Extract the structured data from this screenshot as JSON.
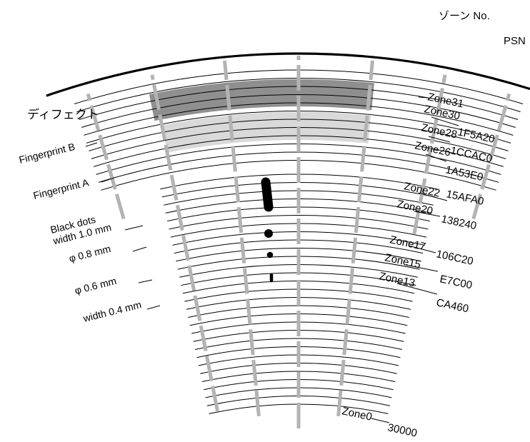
{
  "header": {
    "zone_no_label": "ゾーン No.",
    "psn_label": "PSN"
  },
  "defect_title": "ディフェクト",
  "defects": [
    {
      "label": "Fingerprint B"
    },
    {
      "label": "Fingerprint A"
    },
    {
      "label": "Black dots\nwidth 1.0 mm"
    },
    {
      "label": "φ 0.8 mm"
    },
    {
      "label": "φ 0.6 mm"
    },
    {
      "label": "width 0.4 mm"
    }
  ],
  "zones": [
    {
      "zone": "Zone31",
      "psn": ""
    },
    {
      "zone": "Zone30",
      "psn": "1F5A20"
    },
    {
      "zone": "Zone28",
      "psn": "1CCAC0"
    },
    {
      "zone": "Zone26",
      "psn": "1A53E0"
    },
    {
      "zone": "Zone22",
      "psn": "15AFA0"
    },
    {
      "zone": "Zone20",
      "psn": "138240"
    },
    {
      "zone": "Zone17",
      "psn": "106C20"
    },
    {
      "zone": "Zone15",
      "psn": "E7C00"
    },
    {
      "zone": "Zone13",
      "psn": "CA460"
    },
    {
      "zone": "Zone0",
      "psn": "30000"
    }
  ],
  "colors": {
    "fingerprint_b": "#8f8f8f",
    "fingerprint_a": "#d9d9d9",
    "spokes": "#b3b3b3",
    "lines": "#000000"
  }
}
